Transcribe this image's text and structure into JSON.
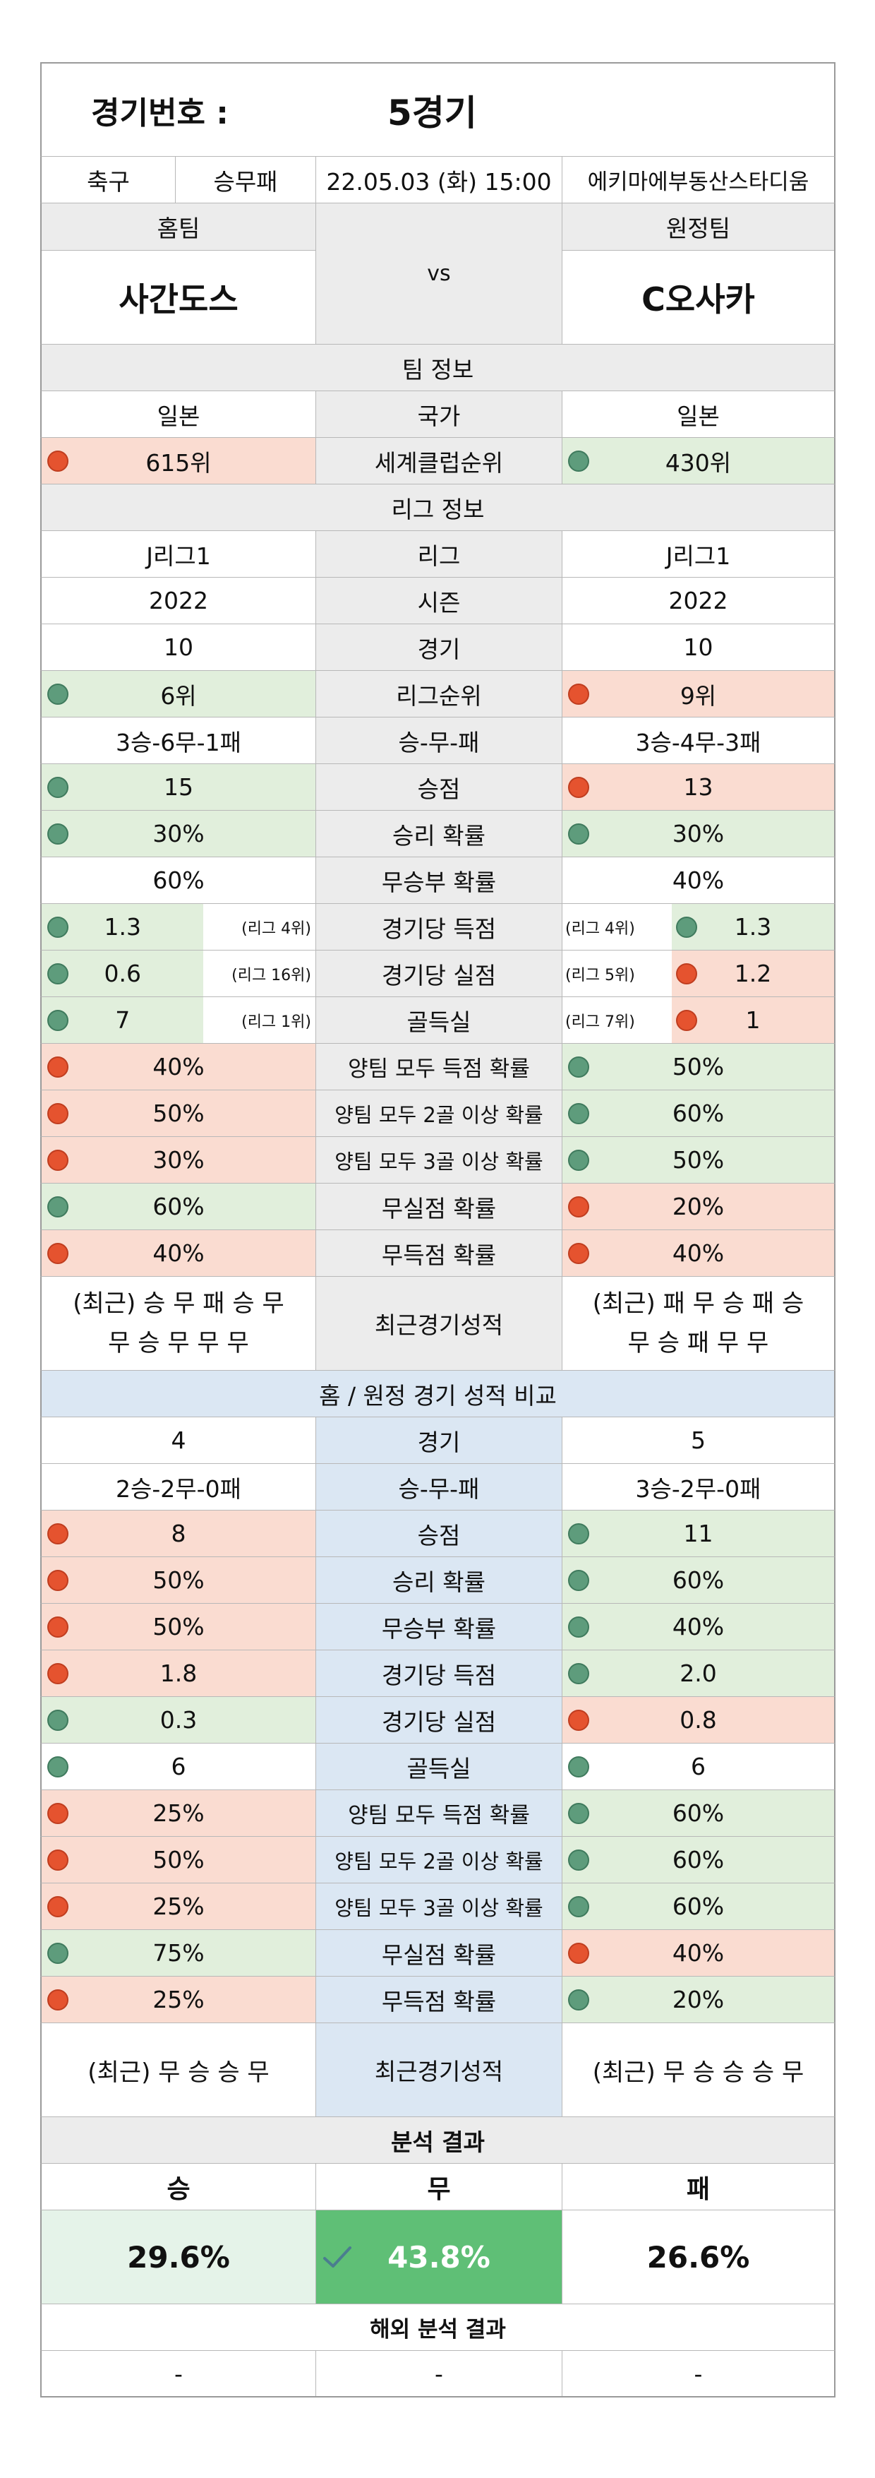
{
  "header": {
    "match_label": "경기번호 :",
    "match_value": "5경기"
  },
  "info": {
    "sport": "축구",
    "type": "승무패",
    "datetime": "22.05.03 (화) 15:00",
    "venue": "에키마에부동산스타디움"
  },
  "teams": {
    "home_label": "홈팀",
    "away_label": "원정팀",
    "vs": "vs",
    "home_name": "사간도스",
    "away_name": "C오사카"
  },
  "team_info": {
    "title": "팀 정보",
    "rows": [
      {
        "home": "일본",
        "label": "국가",
        "away": "일본"
      },
      {
        "home": "615위",
        "label": "세계클럽순위",
        "away": "430위",
        "home_dot": "red",
        "away_dot": "green"
      }
    ]
  },
  "league_info": {
    "title": "리그 정보",
    "rows": [
      {
        "home": "J리그1",
        "label": "리그",
        "away": "J리그1"
      },
      {
        "home": "2022",
        "label": "시즌",
        "away": "2022"
      },
      {
        "home": "10",
        "label": "경기",
        "away": "10"
      },
      {
        "home": "6위",
        "label": "리그순위",
        "away": "9위"
      },
      {
        "home": "3승-6무-1패",
        "label": "승-무-패",
        "away": "3승-4무-3패"
      },
      {
        "home": "15",
        "label": "승점",
        "away": "13"
      },
      {
        "home": "30%",
        "label": "승리 확률",
        "away": "30%"
      },
      {
        "home": "60%",
        "label": "무승부 확률",
        "away": "40%"
      },
      {
        "home": "1.3",
        "home_rank": "(리그 4위)",
        "label": "경기당 득점",
        "away_rank": "(리그 4위)",
        "away": "1.3"
      },
      {
        "home": "0.6",
        "home_rank": "(리그 16위)",
        "label": "경기당 실점",
        "away_rank": "(리그 5위)",
        "away": "1.2"
      },
      {
        "home": "7",
        "home_rank": "(리그 1위)",
        "label": "골득실",
        "away_rank": "(리그 7위)",
        "away": "1"
      },
      {
        "home": "40%",
        "label": "양팀 모두 득점 확률",
        "away": "50%"
      },
      {
        "home": "50%",
        "label": "양팀 모두 2골 이상 확률",
        "away": "60%"
      },
      {
        "home": "30%",
        "label": "양팀 모두 3골 이상 확률",
        "away": "50%"
      },
      {
        "home": "60%",
        "label": "무실점 확률",
        "away": "20%"
      },
      {
        "home": "40%",
        "label": "무득점 확률",
        "away": "40%"
      }
    ],
    "recent": {
      "home_line1": "(최근) 승 무 패 승 무",
      "home_line2": "무 승 무 무 무",
      "label": "최근경기성적",
      "away_line1": "(최근) 패 무 승 패 승",
      "away_line2": "무 승 패 무 무"
    }
  },
  "homeaway": {
    "title": "홈 / 원정 경기 성적 비교",
    "rows": [
      {
        "home": "4",
        "label": "경기",
        "away": "5"
      },
      {
        "home": "2승-2무-0패",
        "label": "승-무-패",
        "away": "3승-2무-0패"
      },
      {
        "home": "8",
        "label": "승점",
        "away": "11"
      },
      {
        "home": "50%",
        "label": "승리 확률",
        "away": "60%"
      },
      {
        "home": "50%",
        "label": "무승부 확률",
        "away": "40%"
      },
      {
        "home": "1.8",
        "label": "경기당 득점",
        "away": "2.0"
      },
      {
        "home": "0.3",
        "label": "경기당 실점",
        "away": "0.8"
      },
      {
        "home": "6",
        "label": "골득실",
        "away": "6"
      },
      {
        "home": "25%",
        "label": "양팀 모두 득점 확률",
        "away": "60%"
      },
      {
        "home": "50%",
        "label": "양팀 모두 2골 이상 확률",
        "away": "60%"
      },
      {
        "home": "25%",
        "label": "양팀 모두 3골 이상 확률",
        "away": "60%"
      },
      {
        "home": "75%",
        "label": "무실점 확률",
        "away": "40%"
      },
      {
        "home": "25%",
        "label": "무득점 확률",
        "away": "20%"
      }
    ],
    "recent": {
      "home": "(최근) 무 승 승 무",
      "label": "최근경기성적",
      "away": "(최근) 무 승 승 승 무"
    }
  },
  "analysis": {
    "title": "분석 결과",
    "win_label": "승",
    "draw_label": "무",
    "loss_label": "패",
    "win": "29.6%",
    "draw": "43.8%",
    "loss": "26.6%"
  },
  "overseas": {
    "title": "해외 분석 결과",
    "win": "-",
    "draw": "-",
    "loss": "-"
  },
  "colors": {
    "red_cell": "#fadcd1",
    "green_cell": "#e1efdc",
    "highlight": "#5fbf76",
    "section_gray": "#ececec",
    "section_blue": "#dbe7f3"
  }
}
